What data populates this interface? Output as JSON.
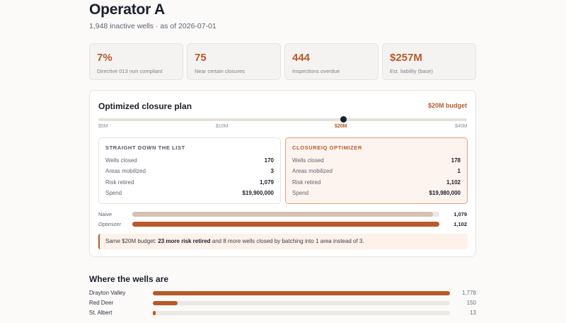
{
  "header": {
    "title": "Operator A",
    "subtitle": "1,948 inactive wells · as of 2026-07-01"
  },
  "kpis": [
    {
      "value": "7%",
      "label": "Directive 013 non compliant"
    },
    {
      "value": "75",
      "label": "Near certain closures"
    },
    {
      "value": "444",
      "label": "Inspections overdue"
    },
    {
      "value": "$257M",
      "label": "Est. liability (base)"
    }
  ],
  "plan": {
    "title": "Optimized closure plan",
    "budget_label": "$20M budget",
    "slider": {
      "ticks": [
        "$5M",
        "$10M",
        "$20M",
        "$40M"
      ],
      "selected": "$20M"
    },
    "naive": {
      "heading": "STRAIGHT DOWN THE LIST",
      "rows": [
        {
          "label": "Wells closed",
          "value": "170"
        },
        {
          "label": "Areas mobilized",
          "value": "3"
        },
        {
          "label": "Risk retired",
          "value": "1,079"
        },
        {
          "label": "Spend",
          "value": "$19,900,000"
        }
      ]
    },
    "optimizer": {
      "heading": "CLOSUREIQ OPTIMIZER",
      "rows": [
        {
          "label": "Wells closed",
          "value": "178"
        },
        {
          "label": "Areas mobilized",
          "value": "1"
        },
        {
          "label": "Risk retired",
          "value": "1,102"
        },
        {
          "label": "Spend",
          "value": "$19,980,000"
        }
      ]
    },
    "comparison": {
      "naive_label": "Naive",
      "naive_value": "1,079",
      "naive_fraction": 0.979,
      "optimizer_label": "Optimizer",
      "optimizer_value": "1,102",
      "optimizer_fraction": 1.0
    },
    "callout": {
      "prefix": "Same $20M budget: ",
      "bold": "23 more risk retired",
      "suffix": " and 8 more wells closed by batching into 1 area instead of 3."
    }
  },
  "areas": {
    "title": "Where the wells are",
    "items": [
      {
        "name": "Drayton Valley",
        "value": "1,778",
        "fraction": 1.0
      },
      {
        "name": "Red Deer",
        "value": "150",
        "fraction": 0.084
      },
      {
        "name": "St. Albert",
        "value": "13",
        "fraction": 0.008
      }
    ]
  },
  "colors": {
    "accent": "#b85a2a",
    "naive_bar": "#d5c1b2",
    "text": "#1b1f2c"
  }
}
